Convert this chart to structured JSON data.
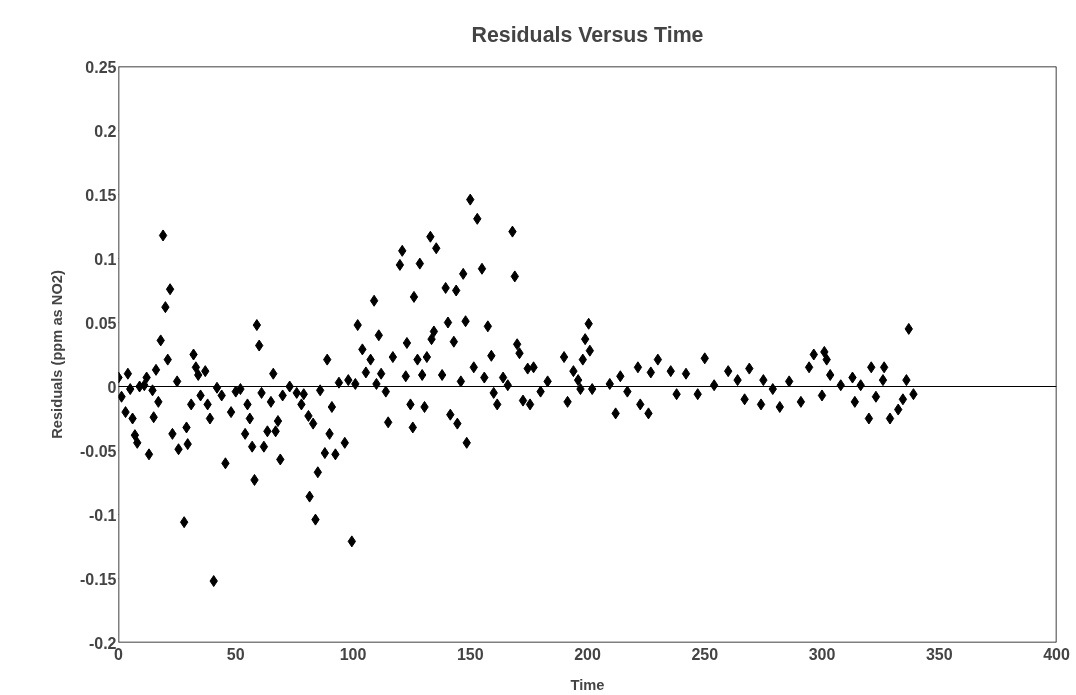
{
  "chart_data": {
    "type": "scatter",
    "title": "Residuals Versus Time",
    "xlabel": "Time",
    "ylabel": "Residuals (ppm as NO2)",
    "xlim": [
      0,
      400
    ],
    "xticks": [
      0,
      50,
      100,
      150,
      200,
      250,
      300,
      350,
      400
    ],
    "ylim": [
      -0.2,
      0.25
    ],
    "yticks": [
      -0.2,
      -0.15,
      -0.1,
      -0.05,
      0,
      0.05,
      0.1,
      0.15,
      0.2,
      0.25
    ],
    "grid": false,
    "marker": "diamond",
    "ref_lines": [
      {
        "axis": "y",
        "value": 0,
        "color": "#000000"
      }
    ],
    "series": [
      {
        "color": "#000000",
        "x": [
          0,
          1.3,
          4,
          3,
          5,
          6,
          7,
          8,
          9,
          12,
          11,
          13,
          14.5,
          15,
          16,
          17,
          18,
          19,
          20,
          22,
          21,
          25,
          23,
          25.6,
          29,
          29.5,
          28,
          31,
          32,
          33,
          34,
          37,
          35,
          38,
          39,
          40.6,
          42,
          44,
          45.6,
          48,
          50,
          52,
          54,
          55,
          56,
          57,
          58,
          59,
          60,
          61,
          62,
          63.5,
          65,
          66,
          67,
          68,
          69,
          70,
          73,
          76,
          79,
          78,
          81,
          83,
          81.5,
          84,
          85,
          86,
          88,
          89,
          90,
          91,
          92.5,
          94,
          96.5,
          99.5,
          98,
          101,
          102,
          104,
          105.5,
          107.5,
          109,
          110,
          111,
          112,
          114,
          115,
          117,
          120,
          121,
          122.5,
          123,
          124.5,
          125.5,
          126,
          127.5,
          128.5,
          129.5,
          130.5,
          131.5,
          133,
          133.5,
          134.5,
          135.5,
          138,
          139.5,
          140.5,
          141.5,
          143,
          144,
          144.5,
          146,
          147,
          148,
          148.5,
          150,
          151.5,
          153,
          155,
          156,
          157.5,
          159,
          160,
          161.5,
          164,
          166,
          168,
          169,
          170,
          171,
          172.5,
          174.5,
          175.5,
          177,
          180,
          183,
          190,
          194,
          191.5,
          196,
          197,
          198,
          199,
          200.5,
          201,
          202,
          209.5,
          212,
          214,
          217,
          221.5,
          222.5,
          226,
          227,
          230,
          235.5,
          238,
          242,
          247,
          250,
          254,
          260,
          264,
          267,
          269,
          274,
          275,
          279,
          282,
          286,
          291,
          294.5,
          296.5,
          301,
          302,
          300,
          303.5,
          308,
          313,
          314,
          316.5,
          320,
          321,
          323,
          326,
          326.5,
          329,
          332.5,
          334.5,
          336,
          337,
          339
        ],
        "values": [
          0.007,
          -0.008,
          0.01,
          -0.02,
          -0.002,
          -0.025,
          -0.038,
          -0.044,
          0,
          0.007,
          0.001,
          -0.053,
          -0.003,
          -0.024,
          0.013,
          -0.012,
          0.036,
          0.118,
          0.062,
          0.076,
          0.021,
          0.004,
          -0.037,
          -0.049,
          -0.032,
          -0.045,
          -0.106,
          -0.014,
          0.025,
          0.015,
          0.009,
          0.012,
          -0.007,
          -0.014,
          -0.025,
          -0.152,
          -0.001,
          -0.007,
          -0.06,
          -0.02,
          -0.004,
          -0.002,
          -0.037,
          -0.014,
          -0.025,
          -0.047,
          -0.073,
          0.048,
          0.032,
          -0.005,
          -0.047,
          -0.035,
          -0.012,
          0.01,
          -0.035,
          -0.027,
          -0.057,
          -0.007,
          0,
          -0.005,
          -0.006,
          -0.014,
          -0.023,
          -0.029,
          -0.086,
          -0.104,
          -0.067,
          -0.003,
          -0.052,
          0.021,
          -0.037,
          -0.016,
          -0.053,
          0.003,
          -0.044,
          -0.121,
          0.005,
          0.002,
          0.048,
          0.029,
          0.011,
          0.021,
          0.067,
          0.002,
          0.04,
          0.01,
          -0.004,
          -0.028,
          0.023,
          0.095,
          0.106,
          0.008,
          0.034,
          -0.014,
          -0.032,
          0.07,
          0.021,
          0.096,
          0.009,
          -0.016,
          0.023,
          0.117,
          0.037,
          0.043,
          0.108,
          0.009,
          0.077,
          0.05,
          -0.022,
          0.035,
          0.075,
          -0.029,
          0.004,
          0.088,
          0.051,
          -0.044,
          0.146,
          0.015,
          0.131,
          0.092,
          0.007,
          0.047,
          0.024,
          -0.005,
          -0.014,
          0.007,
          0.001,
          0.121,
          0.086,
          0.033,
          0.026,
          -0.011,
          0.014,
          -0.014,
          0.015,
          -0.004,
          0.004,
          0.023,
          0.012,
          -0.012,
          0.005,
          -0.002,
          0.021,
          0.037,
          0.049,
          0.028,
          -0.002,
          0.002,
          -0.021,
          0.008,
          -0.004,
          0.015,
          -0.014,
          -0.021,
          0.011,
          0.021,
          0.012,
          -0.006,
          0.01,
          -0.006,
          0.022,
          0.001,
          0.012,
          0.005,
          -0.01,
          0.014,
          -0.014,
          0.005,
          -0.002,
          -0.016,
          0.004,
          -0.012,
          0.015,
          0.025,
          0.027,
          0.021,
          -0.007,
          0.009,
          0.001,
          0.007,
          -0.012,
          0.001,
          -0.025,
          0.015,
          -0.008,
          0.005,
          0.015,
          -0.025,
          -0.018,
          -0.01,
          0.005,
          0.045,
          -0.006
        ]
      }
    ]
  }
}
